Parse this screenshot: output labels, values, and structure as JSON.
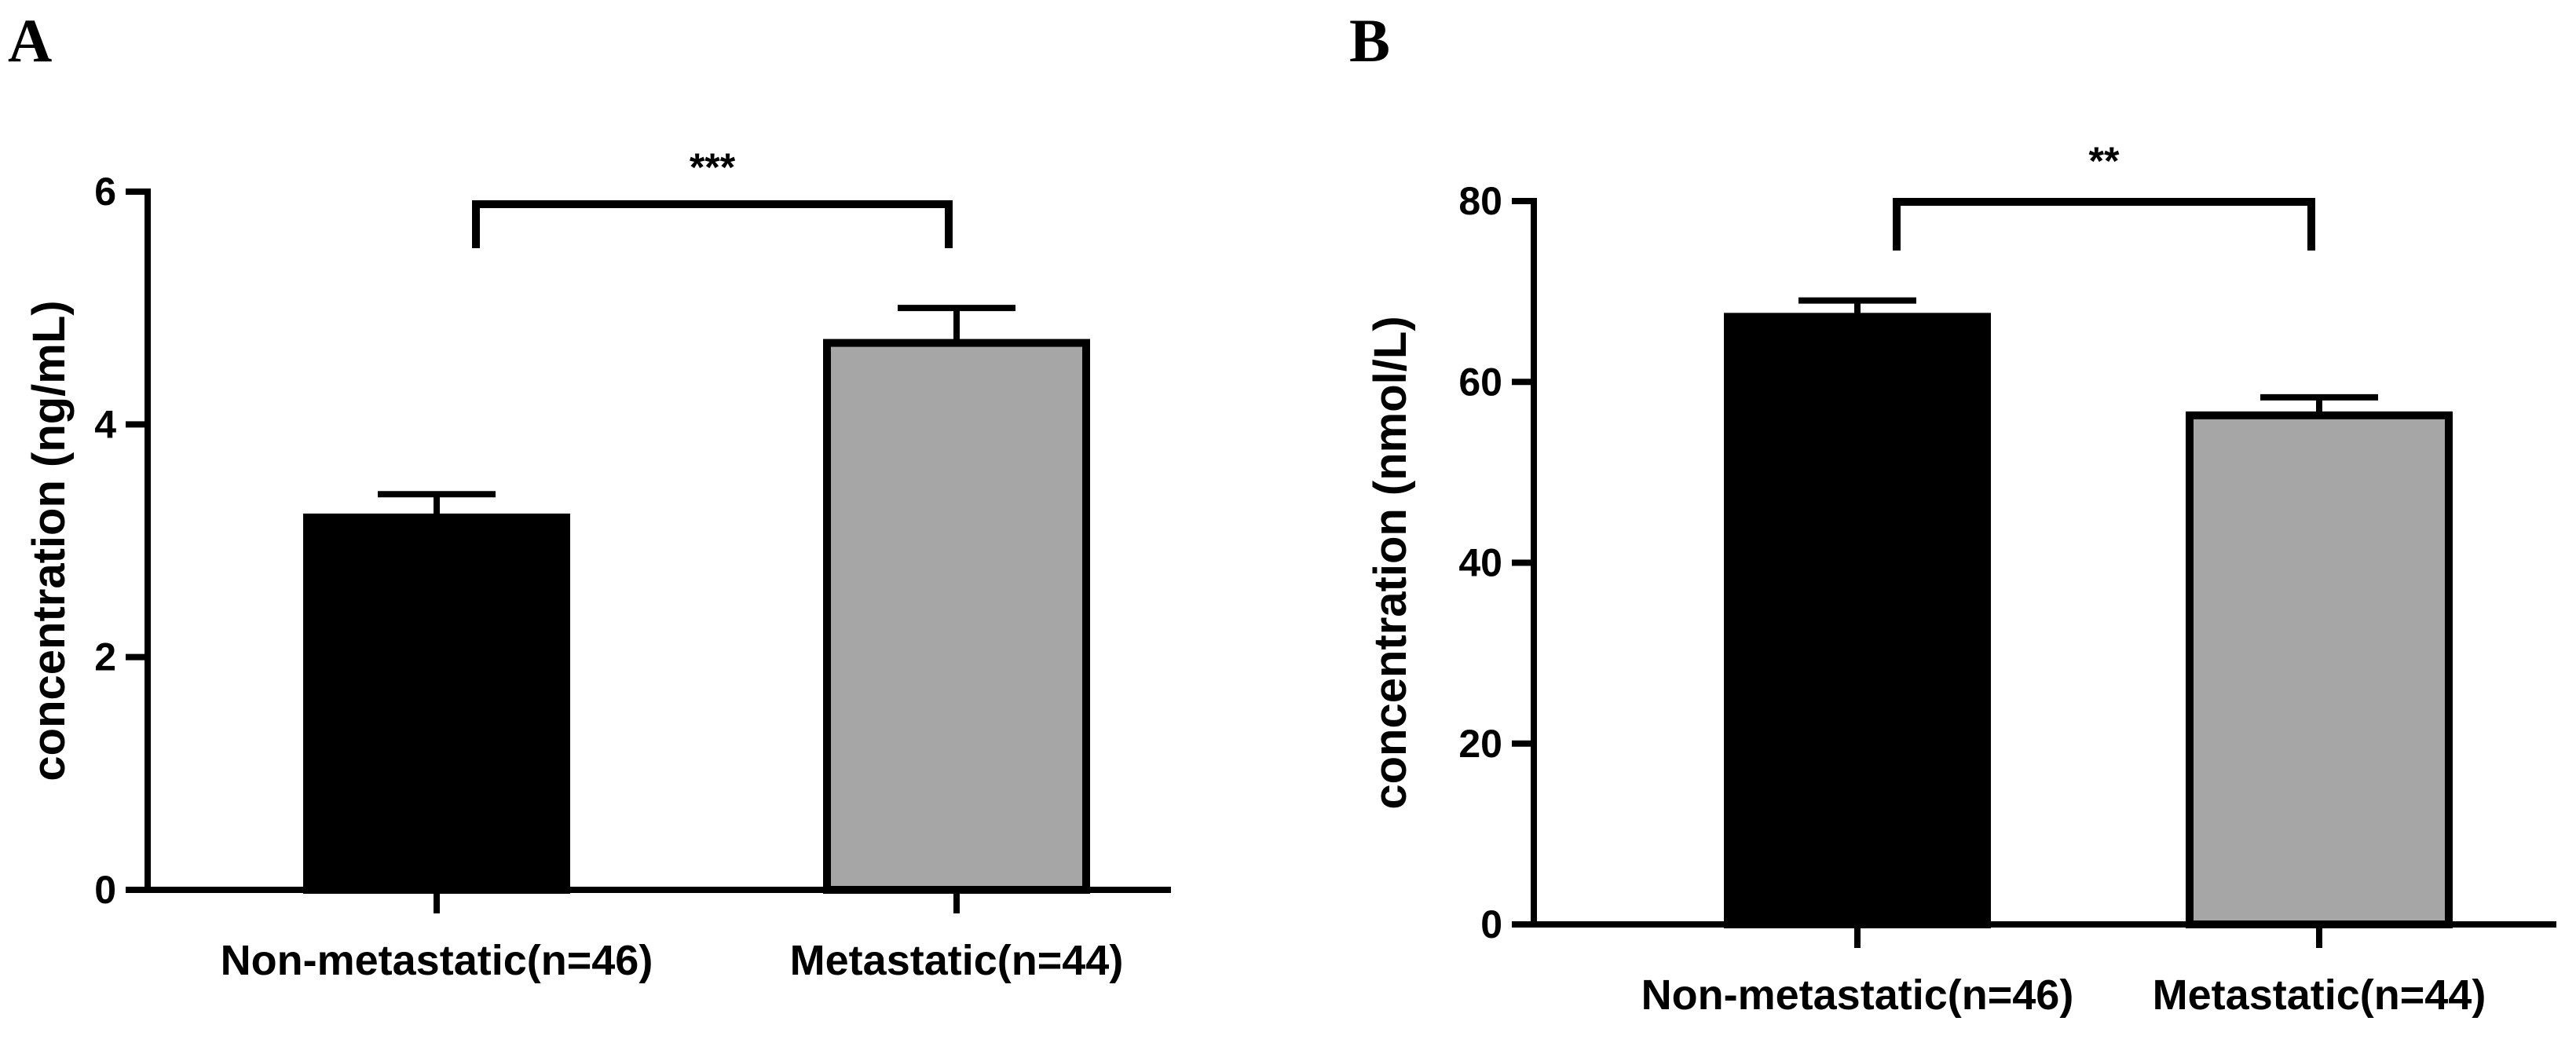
{
  "chart_data": [
    {
      "panel": "A",
      "type": "bar",
      "categories": [
        "Non-metastatic(n=46)",
        "Metastatic(n=44)"
      ],
      "values": [
        3.2,
        4.7
      ],
      "errors": [
        0.2,
        0.3
      ],
      "bar_colors": [
        "#000000",
        "#a6a6a6"
      ],
      "ylabel": "concentration (ng/mL)",
      "ylim": [
        0,
        6
      ],
      "yticks": [
        0,
        2,
        4,
        6
      ],
      "significance": "***"
    },
    {
      "panel": "B",
      "type": "bar",
      "categories": [
        "Non-metastatic(n=46)",
        "Metastatic(n=44)"
      ],
      "values": [
        67.2,
        56.3
      ],
      "errors": [
        1.8,
        2.0
      ],
      "bar_colors": [
        "#000000",
        "#a6a6a6"
      ],
      "ylabel": "concentration (nmol/L)",
      "ylim": [
        0,
        80
      ],
      "yticks": [
        0,
        20,
        40,
        60,
        80
      ],
      "significance": "**"
    }
  ]
}
